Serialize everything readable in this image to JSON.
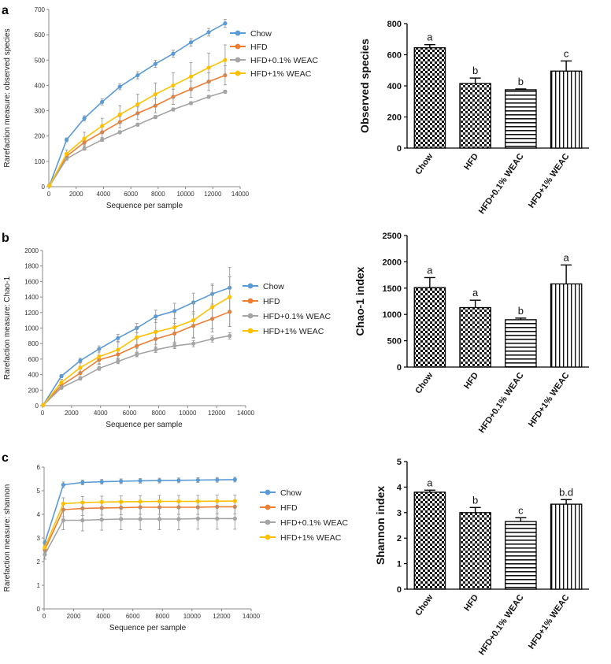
{
  "colors": {
    "Chow": "#5b9bd5",
    "HFD": "#ed7d31",
    "HFD+0.1% WEAC": "#a5a5a5",
    "HFD+1% WEAC": "#ffc000"
  },
  "chart_data": [
    {
      "panel": "a",
      "type": "line",
      "xlabel": "Sequence per sample",
      "ylabel": "Rarefaction measure: observed species",
      "xlim": [
        0,
        14000
      ],
      "ylim": [
        0,
        700
      ],
      "xticks": [
        0,
        2000,
        4000,
        6000,
        8000,
        10000,
        12000,
        14000
      ],
      "yticks": [
        0,
        100,
        200,
        300,
        400,
        500,
        600,
        700
      ],
      "x": [
        50,
        1300,
        2600,
        3900,
        5200,
        6500,
        7800,
        9100,
        10400,
        11700,
        12900
      ],
      "legend": "right",
      "series": [
        {
          "name": "Chow",
          "values": [
            5,
            185,
            270,
            335,
            395,
            440,
            485,
            525,
            570,
            610,
            645
          ],
          "err": [
            0,
            8,
            10,
            12,
            12,
            14,
            14,
            14,
            15,
            15,
            16
          ]
        },
        {
          "name": "HFD",
          "values": [
            4,
            120,
            175,
            215,
            255,
            290,
            320,
            355,
            385,
            415,
            440
          ],
          "err": [
            0,
            10,
            15,
            20,
            22,
            25,
            28,
            30,
            32,
            35,
            38
          ]
        },
        {
          "name": "HFD+0.1% WEAC",
          "values": [
            3,
            110,
            150,
            185,
            215,
            245,
            275,
            305,
            330,
            355,
            375
          ],
          "err": [
            0,
            5,
            5,
            6,
            6,
            6,
            6,
            6,
            6,
            6,
            6
          ]
        },
        {
          "name": "HFD+1% WEAC",
          "values": [
            4,
            130,
            190,
            240,
            285,
            325,
            365,
            400,
            435,
            470,
            500
          ],
          "err": [
            0,
            15,
            25,
            30,
            35,
            40,
            45,
            50,
            55,
            58,
            60
          ]
        }
      ]
    },
    {
      "panel": "a",
      "type": "bar",
      "ylabel": "Observed species",
      "ylim": [
        0,
        800
      ],
      "yticks": [
        0,
        200,
        400,
        600,
        800
      ],
      "categories": [
        "Chow",
        "HFD",
        "HFD+0.1% WEAC",
        "HFD+1% WEAC"
      ],
      "values": [
        645,
        415,
        375,
        495
      ],
      "err": [
        20,
        35,
        5,
        65
      ],
      "labels": [
        "a",
        "b",
        "b",
        "c"
      ]
    },
    {
      "panel": "b",
      "type": "line",
      "xlabel": "Sequence per sample",
      "ylabel": "Rarefaction measure: Chao-1",
      "xlim": [
        0,
        14000
      ],
      "ylim": [
        0,
        2000
      ],
      "xticks": [
        0,
        2000,
        4000,
        6000,
        8000,
        10000,
        12000,
        14000
      ],
      "yticks": [
        0,
        200,
        400,
        600,
        800,
        1000,
        1200,
        1400,
        1600,
        1800,
        2000
      ],
      "x": [
        50,
        1300,
        2600,
        3900,
        5200,
        6500,
        7800,
        9100,
        10400,
        11700,
        12900
      ],
      "legend": "right",
      "series": [
        {
          "name": "Chow",
          "values": [
            10,
            380,
            580,
            730,
            870,
            1000,
            1150,
            1220,
            1330,
            1440,
            1520
          ],
          "err": [
            0,
            20,
            30,
            40,
            50,
            60,
            80,
            100,
            120,
            130,
            140
          ]
        },
        {
          "name": "HFD",
          "values": [
            8,
            260,
            420,
            590,
            660,
            770,
            860,
            930,
            1030,
            1120,
            1210
          ],
          "err": [
            0,
            30,
            50,
            60,
            70,
            90,
            110,
            130,
            150,
            170,
            190
          ]
        },
        {
          "name": "HFD+0.1% WEAC",
          "values": [
            6,
            230,
            350,
            480,
            570,
            660,
            720,
            770,
            800,
            860,
            900
          ],
          "err": [
            0,
            15,
            20,
            25,
            30,
            30,
            35,
            35,
            40,
            40,
            40
          ]
        },
        {
          "name": "HFD+1% WEAC",
          "values": [
            8,
            300,
            490,
            630,
            720,
            880,
            950,
            1010,
            1100,
            1270,
            1400
          ],
          "err": [
            0,
            40,
            70,
            90,
            110,
            140,
            160,
            190,
            230,
            280,
            380
          ]
        }
      ]
    },
    {
      "panel": "b",
      "type": "bar",
      "ylabel": "Chao-1 index",
      "ylim": [
        0,
        2500
      ],
      "yticks": [
        0,
        500,
        1000,
        1500,
        2000,
        2500
      ],
      "categories": [
        "Chow",
        "HFD",
        "HFD+0.1% WEAC",
        "HFD+1% WEAC"
      ],
      "values": [
        1510,
        1130,
        900,
        1580
      ],
      "err": [
        190,
        140,
        30,
        360
      ],
      "labels": [
        "a",
        "a",
        "b",
        "a"
      ]
    },
    {
      "panel": "c",
      "type": "line",
      "xlabel": "Sequence per sample",
      "ylabel": "Rarefaction measure: shannon",
      "xlim": [
        0,
        14000
      ],
      "ylim": [
        0,
        6
      ],
      "xticks": [
        0,
        2000,
        4000,
        6000,
        8000,
        10000,
        12000,
        14000
      ],
      "yticks": [
        0,
        1,
        2,
        3,
        4,
        5,
        6
      ],
      "x": [
        50,
        1300,
        2600,
        3900,
        5200,
        6500,
        7800,
        9100,
        10400,
        11700,
        12900
      ],
      "legend": "right",
      "series": [
        {
          "name": "Chow",
          "values": [
            2.8,
            5.25,
            5.35,
            5.38,
            5.4,
            5.42,
            5.43,
            5.44,
            5.45,
            5.46,
            5.47
          ],
          "err": [
            0.1,
            0.12,
            0.1,
            0.1,
            0.1,
            0.1,
            0.1,
            0.1,
            0.1,
            0.1,
            0.1
          ]
        },
        {
          "name": "HFD",
          "values": [
            2.5,
            4.2,
            4.25,
            4.27,
            4.28,
            4.3,
            4.3,
            4.3,
            4.3,
            4.32,
            4.32
          ],
          "err": [
            0.2,
            0.3,
            0.3,
            0.3,
            0.3,
            0.3,
            0.3,
            0.3,
            0.3,
            0.3,
            0.3
          ]
        },
        {
          "name": "HFD+0.1% WEAC",
          "values": [
            2.3,
            3.75,
            3.75,
            3.78,
            3.8,
            3.8,
            3.8,
            3.8,
            3.82,
            3.82,
            3.82
          ],
          "err": [
            0.2,
            0.4,
            0.45,
            0.45,
            0.45,
            0.45,
            0.45,
            0.45,
            0.45,
            0.45,
            0.45
          ]
        },
        {
          "name": "HFD+1% WEAC",
          "values": [
            2.6,
            4.45,
            4.5,
            4.52,
            4.53,
            4.54,
            4.55,
            4.55,
            4.55,
            4.56,
            4.56
          ],
          "err": [
            0.2,
            0.25,
            0.25,
            0.25,
            0.25,
            0.25,
            0.25,
            0.25,
            0.25,
            0.25,
            0.25
          ]
        }
      ]
    },
    {
      "panel": "c",
      "type": "bar",
      "ylabel": "Shannon index",
      "ylim": [
        0,
        5
      ],
      "yticks": [
        0,
        1,
        2,
        3,
        4,
        5
      ],
      "categories": [
        "Chow",
        "HFD",
        "HFD+0.1% WEAC",
        "HFD+1% WEAC"
      ],
      "values": [
        3.8,
        3.0,
        2.65,
        3.33
      ],
      "err": [
        0.08,
        0.2,
        0.15,
        0.18
      ],
      "labels": [
        "a",
        "b",
        "c",
        "b.d"
      ]
    }
  ]
}
